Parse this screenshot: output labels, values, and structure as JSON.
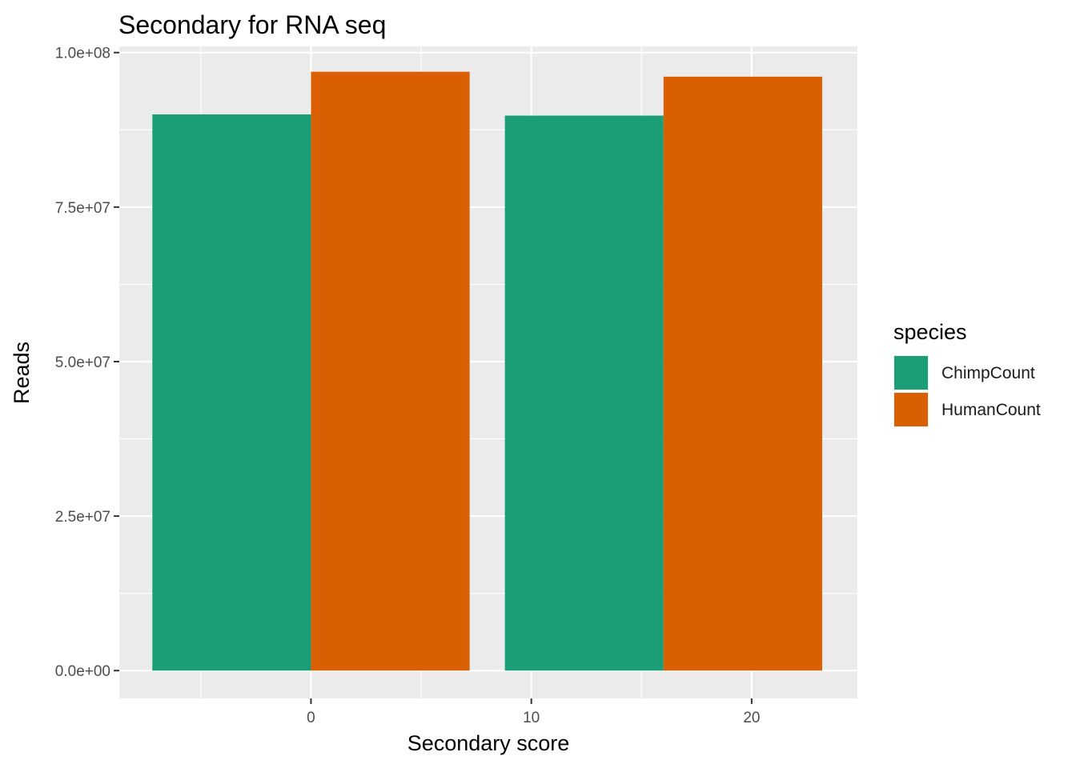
{
  "chart_data": {
    "type": "bar",
    "title": "Secondary for RNA seq",
    "xlabel": "Secondary score",
    "ylabel": "Reads",
    "x_ticks": [
      "0",
      "10",
      "20"
    ],
    "y_ticks": [
      "0.0e+00",
      "2.5e+07",
      "5.0e+07",
      "7.5e+07",
      "1.0e+08"
    ],
    "xlim": [
      -8.7,
      24.8
    ],
    "ylim": [
      -4500000,
      101000000
    ],
    "bar_width": 7.2,
    "legend": {
      "title": "species",
      "position": "right"
    },
    "series": [
      {
        "name": "ChimpCount",
        "color": "#1B9E77",
        "x": [
          0,
          16
        ],
        "values": [
          90000000,
          89800000
        ]
      },
      {
        "name": "HumanCount",
        "color": "#D95F02",
        "x": [
          0,
          16
        ],
        "values": [
          96900000,
          96100000
        ]
      }
    ],
    "grid": true,
    "panel_background": "#EBEBEB",
    "grid_color": "#FFFFFF"
  }
}
